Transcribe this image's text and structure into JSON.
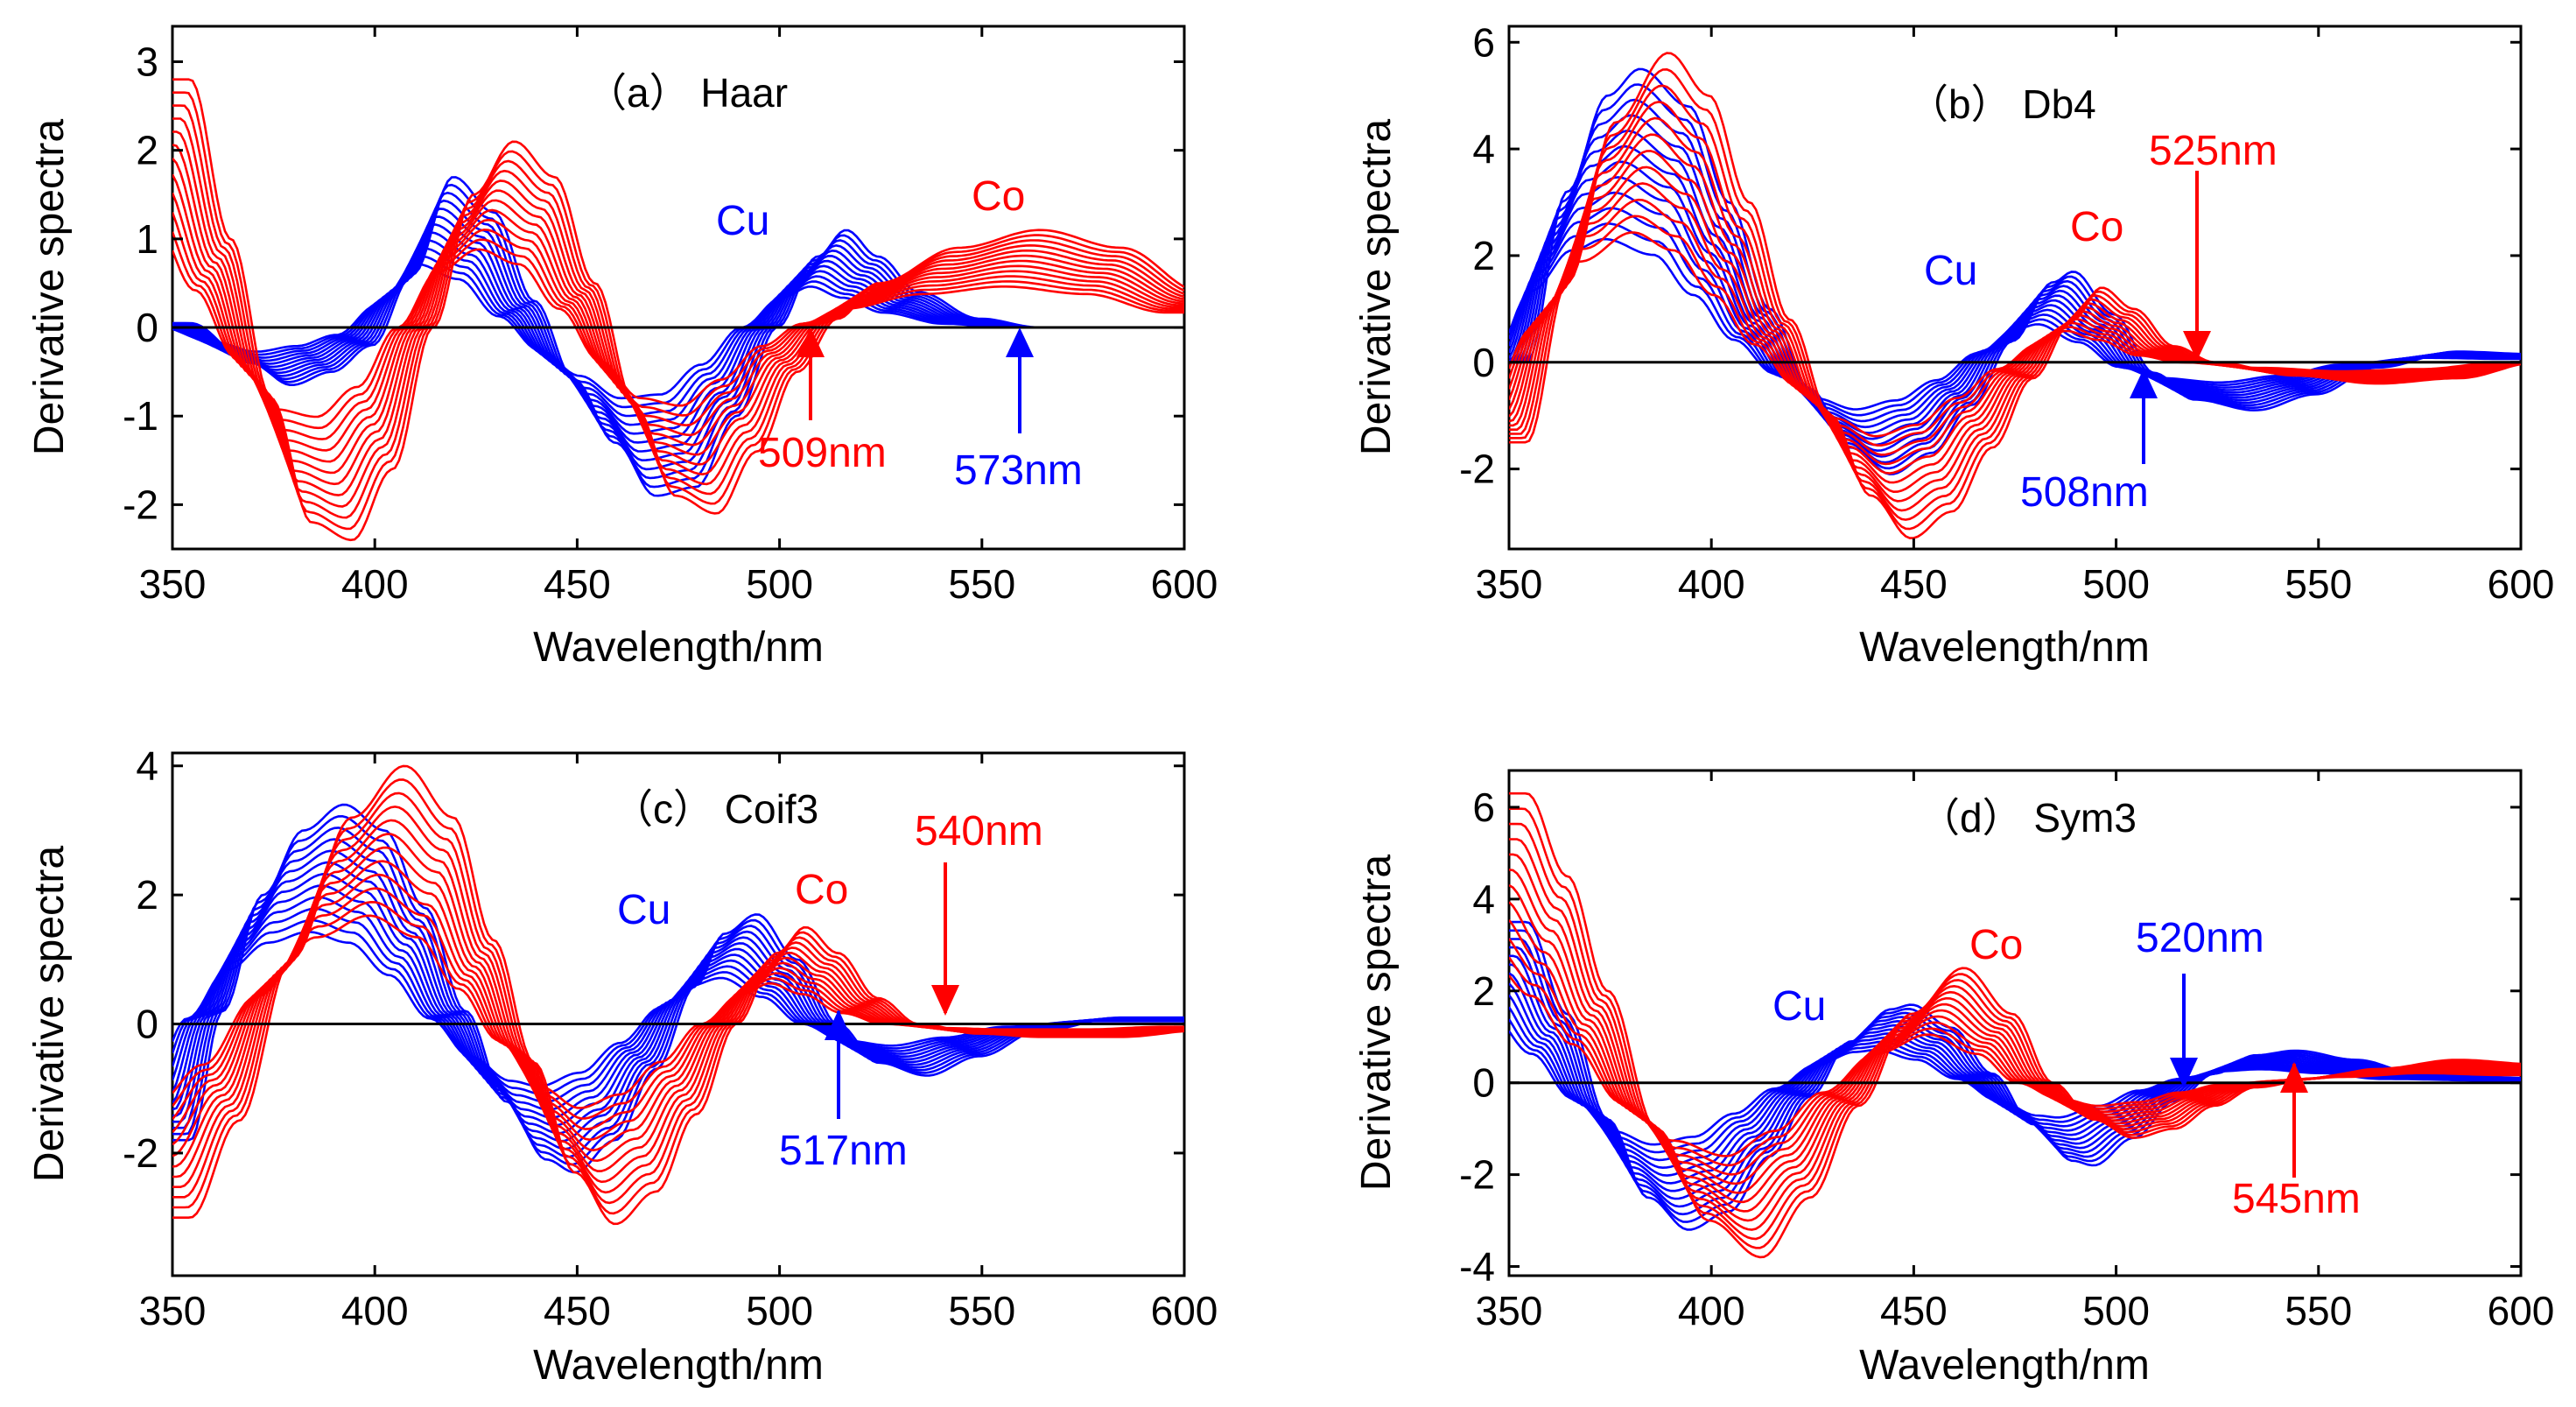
{
  "chart_data": [
    {
      "type": "line",
      "title": "（a） Haar",
      "xlabel": "Wavelength/nm",
      "ylabel": "Derivative spectra",
      "xlim": [
        350,
        600
      ],
      "ylim": [
        -2.5,
        3.4
      ],
      "xticks": [
        "350",
        "400",
        "450",
        "500",
        "550",
        "600"
      ],
      "yticks": [
        "-2",
        "-1",
        "0",
        "1",
        "2",
        "3"
      ],
      "series": [
        {
          "name": "Cu",
          "color": "#0000ff",
          "curves": 12,
          "x": [
            350,
            365,
            375,
            385,
            395,
            405,
            415,
            425,
            435,
            445,
            455,
            465,
            475,
            485,
            495,
            505,
            512,
            520,
            530,
            545,
            560,
            580,
            600
          ],
          "y": [
            0.05,
            -0.4,
            -0.65,
            -0.5,
            -0.2,
            0.6,
            1.7,
            1.3,
            0.3,
            -0.6,
            -1.3,
            -1.9,
            -1.8,
            -1.0,
            0.0,
            0.8,
            1.1,
            0.8,
            0.4,
            0.1,
            0.0,
            0.0,
            0.0
          ]
        },
        {
          "name": "Co",
          "color": "#ff0000",
          "curves": 12,
          "x": [
            350,
            360,
            370,
            380,
            390,
            400,
            410,
            420,
            430,
            440,
            450,
            460,
            470,
            480,
            490,
            500,
            510,
            520,
            540,
            560,
            580,
            600
          ],
          "y": [
            2.8,
            1.0,
            -0.8,
            -2.2,
            -2.4,
            -1.6,
            0.0,
            1.5,
            2.1,
            1.7,
            0.5,
            -0.9,
            -1.9,
            -2.1,
            -1.4,
            -0.5,
            0.1,
            0.5,
            0.9,
            1.1,
            0.9,
            0.4
          ]
        }
      ],
      "annotations": [
        {
          "label": "Cu",
          "color": "blue"
        },
        {
          "label": "Co",
          "color": "red"
        },
        {
          "label": "509nm",
          "color": "red",
          "x": 509
        },
        {
          "label": "573nm",
          "color": "blue",
          "x": 573
        }
      ]
    },
    {
      "type": "line",
      "title": "（b） Db4",
      "xlabel": "Wavelength/nm",
      "ylabel": "Derivative spectra",
      "xlim": [
        350,
        600
      ],
      "ylim": [
        -3.5,
        6.3
      ],
      "xticks": [
        "350",
        "400",
        "450",
        "500",
        "550",
        "600"
      ],
      "yticks": [
        "-2",
        "0",
        "2",
        "4",
        "6"
      ],
      "series": [
        {
          "name": "Cu",
          "color": "#0000ff",
          "curves": 12,
          "x": [
            350,
            360,
            370,
            378,
            390,
            400,
            410,
            420,
            430,
            440,
            450,
            460,
            470,
            480,
            485,
            495,
            505,
            515,
            530,
            545,
            560,
            580,
            600
          ],
          "y": [
            0.0,
            3.2,
            5.0,
            5.5,
            4.8,
            3.0,
            1.0,
            -0.5,
            -1.6,
            -2.1,
            -1.7,
            -0.8,
            0.4,
            1.5,
            1.7,
            0.9,
            -0.2,
            -0.7,
            -0.9,
            -0.6,
            -0.1,
            0.2,
            0.15
          ]
        },
        {
          "name": "Co",
          "color": "#ff0000",
          "curves": 12,
          "x": [
            350,
            360,
            372,
            385,
            395,
            405,
            415,
            425,
            435,
            445,
            455,
            465,
            475,
            485,
            492,
            500,
            510,
            520,
            540,
            560,
            580,
            600
          ],
          "y": [
            -1.5,
            1.5,
            4.5,
            5.8,
            5.0,
            3.0,
            0.8,
            -1.0,
            -2.5,
            -3.3,
            -2.8,
            -1.6,
            -0.3,
            0.8,
            1.4,
            1.0,
            0.3,
            0.0,
            -0.25,
            -0.4,
            -0.3,
            0.0
          ]
        }
      ],
      "annotations": [
        {
          "label": "Cu",
          "color": "blue"
        },
        {
          "label": "Co",
          "color": "red"
        },
        {
          "label": "525nm",
          "color": "red",
          "x": 525
        },
        {
          "label": "508nm",
          "color": "blue",
          "x": 508
        }
      ]
    },
    {
      "type": "line",
      "title": "（c） Coif3",
      "xlabel": "Wavelength/nm",
      "ylabel": "Derivative spectra",
      "xlim": [
        350,
        600
      ],
      "ylim": [
        -3.9,
        4.2
      ],
      "xticks": [
        "350",
        "400",
        "450",
        "500",
        "550",
        "600"
      ],
      "yticks": [
        "-2",
        "0",
        "2",
        "4"
      ],
      "series": [
        {
          "name": "Cu",
          "color": "#0000ff",
          "curves": 12,
          "x": [
            350,
            358,
            368,
            378,
            388,
            398,
            408,
            418,
            428,
            438,
            445,
            455,
            465,
            475,
            482,
            490,
            500,
            510,
            520,
            532,
            545,
            560,
            580,
            600
          ],
          "y": [
            -1.8,
            0.2,
            2.0,
            3.0,
            3.4,
            3.0,
            1.8,
            0.2,
            -1.2,
            -2.1,
            -2.3,
            -1.8,
            -0.7,
            0.6,
            1.4,
            1.7,
            1.0,
            0.0,
            -0.6,
            -0.8,
            -0.5,
            -0.1,
            0.1,
            0.1
          ]
        },
        {
          "name": "Co",
          "color": "#ff0000",
          "curves": 12,
          "x": [
            350,
            362,
            375,
            390,
            403,
            415,
            425,
            435,
            445,
            455,
            465,
            475,
            485,
            495,
            502,
            510,
            520,
            530,
            545,
            560,
            580,
            600
          ],
          "y": [
            -3.0,
            -1.5,
            1.0,
            3.2,
            4.0,
            3.2,
            1.3,
            -0.6,
            -2.3,
            -3.1,
            -2.6,
            -1.4,
            0.0,
            1.1,
            1.5,
            1.1,
            0.4,
            0.0,
            -0.15,
            -0.2,
            -0.2,
            -0.1
          ]
        }
      ],
      "annotations": [
        {
          "label": "Cu",
          "color": "blue"
        },
        {
          "label": "Co",
          "color": "red"
        },
        {
          "label": "540nm",
          "color": "red",
          "x": 540
        },
        {
          "label": "517nm",
          "color": "blue",
          "x": 517
        }
      ]
    },
    {
      "type": "line",
      "title": "（d） Sym3",
      "xlabel": "Wavelength/nm",
      "ylabel": "Derivative spectra",
      "xlim": [
        350,
        600
      ],
      "ylim": [
        -4.2,
        6.8
      ],
      "xticks": [
        "350",
        "400",
        "450",
        "500",
        "550",
        "600"
      ],
      "yticks": [
        "-4",
        "-2",
        "0",
        "2",
        "4",
        "6"
      ],
      "series": [
        {
          "name": "Cu",
          "color": "#0000ff",
          "curves": 12,
          "x": [
            350,
            360,
            370,
            380,
            390,
            400,
            410,
            420,
            430,
            440,
            445,
            455,
            465,
            475,
            485,
            490,
            500,
            510,
            520,
            530,
            540,
            555,
            570,
            600
          ],
          "y": [
            3.5,
            1.5,
            -0.8,
            -2.5,
            -3.2,
            -2.8,
            -1.6,
            -0.3,
            0.9,
            1.6,
            1.7,
            1.2,
            0.2,
            -0.9,
            -1.7,
            -1.8,
            -1.2,
            -0.4,
            0.2,
            0.6,
            0.7,
            0.5,
            0.2,
            0.1
          ]
        },
        {
          "name": "Co",
          "color": "#ff0000",
          "curves": 12,
          "x": [
            350,
            360,
            370,
            382,
            395,
            408,
            420,
            432,
            445,
            458,
            470,
            480,
            490,
            500,
            510,
            520,
            530,
            545,
            560,
            580,
            600
          ],
          "y": [
            6.3,
            4.5,
            2.0,
            -1.0,
            -3.0,
            -3.8,
            -2.5,
            -0.5,
            1.5,
            2.5,
            1.5,
            0.0,
            -0.8,
            -1.2,
            -1.0,
            -0.5,
            -0.1,
            0.1,
            0.3,
            0.5,
            0.4
          ]
        }
      ],
      "annotations": [
        {
          "label": "Cu",
          "color": "blue"
        },
        {
          "label": "Co",
          "color": "red"
        },
        {
          "label": "520nm",
          "color": "blue",
          "x": 520
        },
        {
          "label": "545nm",
          "color": "red",
          "x": 545
        }
      ]
    }
  ]
}
